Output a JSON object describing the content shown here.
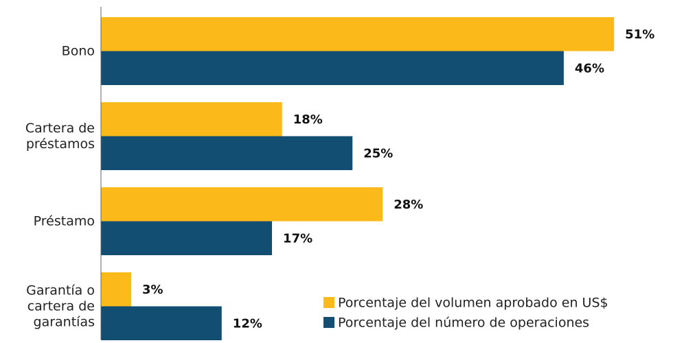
{
  "chart_data": {
    "type": "bar",
    "orientation": "horizontal",
    "categories": [
      "Bono",
      "Cartera de\npréstamos",
      "Préstamo",
      "Garantía o\ncartera de\ngarantías"
    ],
    "series": [
      {
        "name": "Porcentaje del volumen aprobado en US$",
        "color": "#fbba1a",
        "values": [
          51,
          18,
          28,
          3
        ],
        "value_labels": [
          "51%",
          "18%",
          "28%",
          "3%"
        ]
      },
      {
        "name": "Porcentaje del número de operaciones",
        "color": "#124e72",
        "values": [
          46,
          25,
          17,
          12
        ],
        "value_labels": [
          "46%",
          "25%",
          "17%",
          "12%"
        ]
      }
    ],
    "xlim": [
      0,
      55
    ],
    "legend": "lower right"
  }
}
